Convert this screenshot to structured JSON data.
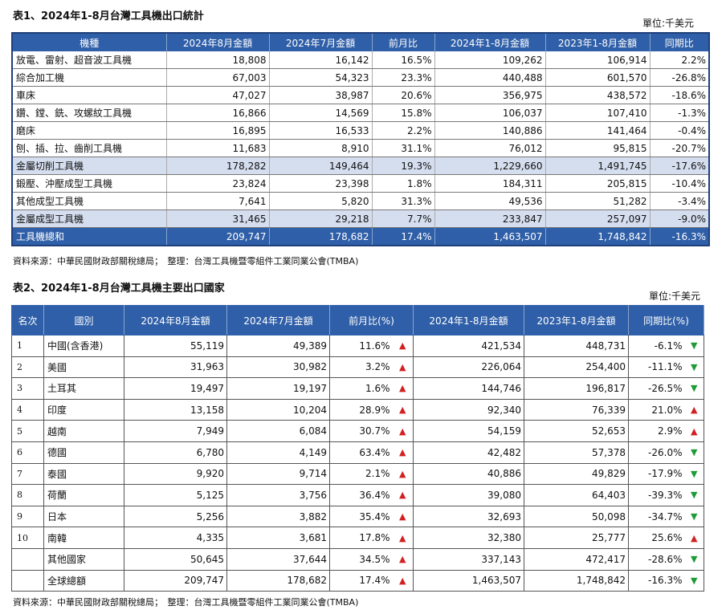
{
  "table1": {
    "title": "表1、2024年1-8月台灣工具機出口統計",
    "unit": "單位:千美元",
    "headers": [
      "機種",
      "2024年8月金額",
      "2024年7月金額",
      "前月比",
      "2024年1-8月金額",
      "2023年1-8月金額",
      "同期比"
    ],
    "rows": [
      {
        "type": "normal",
        "cells": [
          "放電、雷射、超音波工具機",
          "18,808",
          "16,142",
          "16.5%",
          "109,262",
          "106,914",
          "2.2%"
        ]
      },
      {
        "type": "normal",
        "cells": [
          "綜合加工機",
          "67,003",
          "54,323",
          "23.3%",
          "440,488",
          "601,570",
          "-26.8%"
        ]
      },
      {
        "type": "normal",
        "cells": [
          "車床",
          "47,027",
          "38,987",
          "20.6%",
          "356,975",
          "438,572",
          "-18.6%"
        ]
      },
      {
        "type": "normal",
        "cells": [
          "鑽、鏜、銑、攻螺紋工具機",
          "16,866",
          "14,569",
          "15.8%",
          "106,037",
          "107,410",
          "-1.3%"
        ]
      },
      {
        "type": "normal",
        "cells": [
          "磨床",
          "16,895",
          "16,533",
          "2.2%",
          "140,886",
          "141,464",
          "-0.4%"
        ]
      },
      {
        "type": "normal",
        "cells": [
          "刨、插、拉、齒削工具機",
          "11,683",
          "8,910",
          "31.1%",
          "76,012",
          "95,815",
          "-20.7%"
        ]
      },
      {
        "type": "sub",
        "cells": [
          "金屬切削工具機",
          "178,282",
          "149,464",
          "19.3%",
          "1,229,660",
          "1,491,745",
          "-17.6%"
        ]
      },
      {
        "type": "normal",
        "cells": [
          "鍛壓、沖壓成型工具機",
          "23,824",
          "23,398",
          "1.8%",
          "184,311",
          "205,815",
          "-10.4%"
        ]
      },
      {
        "type": "normal",
        "cells": [
          "其他成型工具機",
          "7,641",
          "5,820",
          "31.3%",
          "49,536",
          "51,282",
          "-3.4%"
        ]
      },
      {
        "type": "sub",
        "cells": [
          "金屬成型工具機",
          "31,465",
          "29,218",
          "7.7%",
          "233,847",
          "257,097",
          "-9.0%"
        ]
      },
      {
        "type": "total",
        "cells": [
          "工具機總和",
          "209,747",
          "178,682",
          "17.4%",
          "1,463,507",
          "1,748,842",
          "-16.3%"
        ]
      }
    ],
    "source": "資料來源：中華民國財政部關稅總局；　整理：台灣工具機暨零組件工業同業公會(TMBA)"
  },
  "table2": {
    "title": "表2、2024年1-8月台灣工具機主要出口國家",
    "unit": "單位:千美元",
    "headers": [
      "名次",
      "國別",
      "2024年8月金額",
      "2024年7月金額",
      "前月比(%)",
      "2024年1-8月金額",
      "2023年1-8月金額",
      "同期比(%)"
    ],
    "rows": [
      {
        "rank": "1",
        "country": "中國(含香港)",
        "aug": "55,119",
        "jul": "49,389",
        "mom": "11.6%",
        "mom_dir": "up",
        "ytd24": "421,534",
        "ytd23": "448,731",
        "yoy": "-6.1%",
        "yoy_dir": "down"
      },
      {
        "rank": "2",
        "country": "美國",
        "aug": "31,963",
        "jul": "30,982",
        "mom": "3.2%",
        "mom_dir": "up",
        "ytd24": "226,064",
        "ytd23": "254,400",
        "yoy": "-11.1%",
        "yoy_dir": "down"
      },
      {
        "rank": "3",
        "country": "土耳其",
        "aug": "19,497",
        "jul": "19,197",
        "mom": "1.6%",
        "mom_dir": "up",
        "ytd24": "144,746",
        "ytd23": "196,817",
        "yoy": "-26.5%",
        "yoy_dir": "down"
      },
      {
        "rank": "4",
        "country": "印度",
        "aug": "13,158",
        "jul": "10,204",
        "mom": "28.9%",
        "mom_dir": "up",
        "ytd24": "92,340",
        "ytd23": "76,339",
        "yoy": "21.0%",
        "yoy_dir": "up"
      },
      {
        "rank": "5",
        "country": "越南",
        "aug": "7,949",
        "jul": "6,084",
        "mom": "30.7%",
        "mom_dir": "up",
        "ytd24": "54,159",
        "ytd23": "52,653",
        "yoy": "2.9%",
        "yoy_dir": "up"
      },
      {
        "rank": "6",
        "country": "德國",
        "aug": "6,780",
        "jul": "4,149",
        "mom": "63.4%",
        "mom_dir": "up",
        "ytd24": "42,482",
        "ytd23": "57,378",
        "yoy": "-26.0%",
        "yoy_dir": "down"
      },
      {
        "rank": "7",
        "country": "泰國",
        "aug": "9,920",
        "jul": "9,714",
        "mom": "2.1%",
        "mom_dir": "up",
        "ytd24": "40,886",
        "ytd23": "49,829",
        "yoy": "-17.9%",
        "yoy_dir": "down"
      },
      {
        "rank": "8",
        "country": "荷蘭",
        "aug": "5,125",
        "jul": "3,756",
        "mom": "36.4%",
        "mom_dir": "up",
        "ytd24": "39,080",
        "ytd23": "64,403",
        "yoy": "-39.3%",
        "yoy_dir": "down"
      },
      {
        "rank": "9",
        "country": "日本",
        "aug": "5,256",
        "jul": "3,882",
        "mom": "35.4%",
        "mom_dir": "up",
        "ytd24": "32,693",
        "ytd23": "50,098",
        "yoy": "-34.7%",
        "yoy_dir": "down"
      },
      {
        "rank": "10",
        "country": "南韓",
        "aug": "4,335",
        "jul": "3,681",
        "mom": "17.8%",
        "mom_dir": "up",
        "ytd24": "32,380",
        "ytd23": "25,777",
        "yoy": "25.6%",
        "yoy_dir": "up"
      },
      {
        "rank": "",
        "country": "其他國家",
        "aug": "50,645",
        "jul": "37,644",
        "mom": "34.5%",
        "mom_dir": "up",
        "ytd24": "337,143",
        "ytd23": "472,417",
        "yoy": "-28.6%",
        "yoy_dir": "down"
      },
      {
        "rank": "",
        "country": "全球總額",
        "aug": "209,747",
        "jul": "178,682",
        "mom": "17.4%",
        "mom_dir": "up",
        "ytd24": "1,463,507",
        "ytd23": "1,748,842",
        "yoy": "-16.3%",
        "yoy_dir": "down"
      }
    ],
    "arrow_up": "▲",
    "arrow_down": "▼",
    "source": "資料來源：中華民國財政部關稅總局；　整理：台灣工具機暨零組件工業同業公會(TMBA)"
  },
  "colors": {
    "header_bg": "#2f5fa8",
    "subtotal_bg": "#d5deef",
    "up": "#d21f1f",
    "down": "#1e9a36"
  }
}
